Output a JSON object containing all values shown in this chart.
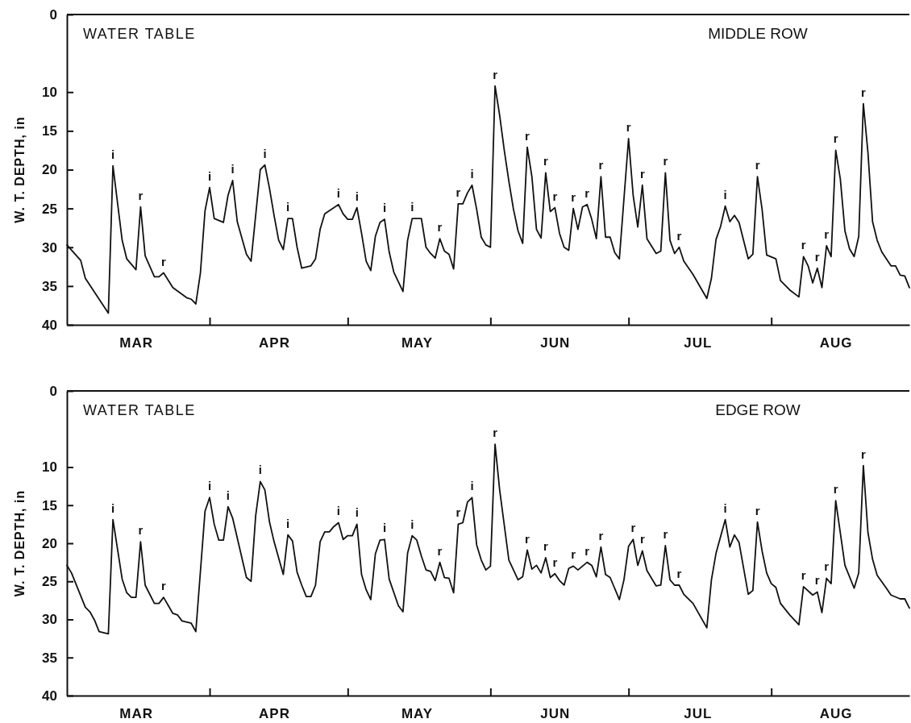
{
  "chart_data": [
    {
      "type": "line",
      "title": "MIDDLE ROW",
      "subtitle": "WATER TABLE",
      "ylabel": "W. T. DEPTH, in",
      "xlim": [
        "--03-01",
        "--08-31"
      ],
      "xticks": [
        {
          "value": "--03-16",
          "label": "MAR"
        },
        {
          "value": "--04-01",
          "label": null
        },
        {
          "value": "--04-15",
          "label": "APR"
        },
        {
          "value": "--05-01",
          "label": null
        },
        {
          "value": "--05-16",
          "label": "MAY"
        },
        {
          "value": "--06-01",
          "label": null
        },
        {
          "value": "--06-15",
          "label": "JUN"
        },
        {
          "value": "--07-01",
          "label": null
        },
        {
          "value": "--07-16",
          "label": "JUL"
        },
        {
          "value": "--08-01",
          "label": null
        },
        {
          "value": "--08-15",
          "label": "AUG"
        }
      ],
      "ylim": [
        40,
        0
      ],
      "yticks": [
        0,
        10,
        15,
        20,
        25,
        30,
        35,
        40
      ],
      "x": [
        "--03-01",
        "--03-04",
        "--03-05",
        "--03-10",
        "--03-11",
        "--03-13",
        "--03-14",
        "--03-16",
        "--03-17",
        "--03-18",
        "--03-20",
        "--03-21",
        "--03-22",
        "--03-24",
        "--03-27",
        "--03-28",
        "--03-29",
        "--03-30",
        "--03-31",
        "--04-01",
        "--04-02",
        "--04-04",
        "--04-05",
        "--04-06",
        "--04-07",
        "--04-09",
        "--04-10",
        "--04-12",
        "--04-13",
        "--04-14",
        "--04-15",
        "--04-16",
        "--04-17",
        "--04-18",
        "--04-19",
        "--04-20",
        "--04-21",
        "--04-23",
        "--04-24",
        "--04-25",
        "--04-26",
        "--04-29",
        "--04-30",
        "--05-01",
        "--05-02",
        "--05-03",
        "--05-04",
        "--05-05",
        "--05-06",
        "--05-07",
        "--05-08",
        "--05-09",
        "--05-10",
        "--05-11",
        "--05-13",
        "--05-14",
        "--05-15",
        "--05-17",
        "--05-18",
        "--05-19",
        "--05-20",
        "--05-21",
        "--05-22",
        "--05-23",
        "--05-24",
        "--05-25",
        "--05-26",
        "--05-27",
        "--05-28",
        "--05-29",
        "--05-30",
        "--05-31",
        "--06-01",
        "--06-02",
        "--06-03",
        "--06-04",
        "--06-05",
        "--06-06",
        "--06-07",
        "--06-08",
        "--06-09",
        "--06-10",
        "--06-11",
        "--06-12",
        "--06-13",
        "--06-14",
        "--06-15",
        "--06-16",
        "--06-17",
        "--06-18",
        "--06-19",
        "--06-20",
        "--06-21",
        "--06-22",
        "--06-23",
        "--06-24",
        "--06-25",
        "--06-26",
        "--06-27",
        "--06-28",
        "--06-29",
        "--07-01",
        "--07-02",
        "--07-03",
        "--07-04",
        "--07-05",
        "--07-07",
        "--07-08",
        "--07-09",
        "--07-10",
        "--07-11",
        "--07-12",
        "--07-13",
        "--07-15",
        "--07-18",
        "--07-19",
        "--07-20",
        "--07-21",
        "--07-22",
        "--07-23",
        "--07-24",
        "--07-25",
        "--07-27",
        "--07-28",
        "--07-29",
        "--07-30",
        "--07-31",
        "--08-02",
        "--08-03",
        "--08-05",
        "--08-07",
        "--08-08",
        "--08-09",
        "--08-10",
        "--08-11",
        "--08-12",
        "--08-13",
        "--08-14",
        "--08-15",
        "--08-16",
        "--08-17",
        "--08-18",
        "--08-19",
        "--08-20",
        "--08-21",
        "--08-22",
        "--08-23",
        "--08-24",
        "--08-25",
        "--08-27",
        "--08-28",
        "--08-29",
        "--08-30",
        "--08-31"
      ],
      "series": [
        {
          "color": "#111111",
          "values": [
            29.7,
            31.7,
            34.0,
            38.5,
            19.5,
            29.1,
            31.5,
            32.9,
            24.8,
            31.1,
            33.8,
            33.8,
            33.3,
            35.2,
            36.5,
            36.7,
            37.3,
            33.3,
            25.3,
            22.3,
            26.3,
            26.8,
            23.3,
            21.4,
            26.7,
            30.9,
            31.8,
            20.0,
            19.4,
            22.4,
            25.9,
            29.1,
            30.3,
            26.3,
            26.3,
            30.0,
            32.7,
            32.4,
            31.5,
            27.7,
            25.7,
            24.5,
            25.7,
            26.4,
            26.4,
            24.9,
            28.2,
            31.8,
            33.0,
            28.6,
            26.8,
            26.4,
            30.6,
            33.2,
            35.7,
            29.1,
            26.3,
            26.3,
            30.0,
            30.8,
            31.4,
            28.9,
            30.5,
            30.9,
            32.8,
            24.4,
            24.4,
            23.0,
            22.0,
            25.1,
            28.7,
            29.7,
            30.0,
            9.2,
            13.0,
            17.5,
            21.5,
            25.1,
            27.9,
            29.5,
            17.1,
            20.9,
            27.7,
            28.8,
            20.4,
            25.4,
            24.9,
            28.2,
            30.0,
            30.4,
            25.0,
            27.7,
            24.8,
            24.5,
            26.4,
            28.9,
            20.9,
            28.7,
            28.7,
            30.7,
            31.5,
            16.0,
            23.3,
            27.4,
            22.0,
            28.9,
            30.8,
            30.5,
            20.4,
            29.1,
            30.8,
            30.0,
            31.8,
            33.5,
            36.6,
            34.0,
            29.0,
            27.3,
            24.7,
            26.7,
            25.9,
            26.8,
            31.5,
            30.9,
            20.9,
            25.1,
            31.0,
            31.5,
            34.3,
            35.5,
            36.4,
            31.2,
            32.4,
            34.6,
            32.7,
            35.2,
            29.8,
            31.2,
            17.5,
            21.2,
            27.9,
            30.2,
            31.2,
            28.6,
            11.5,
            17.8,
            26.7,
            29.1,
            30.6,
            32.4,
            32.4,
            33.6,
            33.7,
            35.2
          ]
        }
      ],
      "annotations": [
        {
          "text": "i",
          "x": "--03-11",
          "y": 19.5
        },
        {
          "text": "r",
          "x": "--03-17",
          "y": 24.8
        },
        {
          "text": "r",
          "x": "--03-22",
          "y": 33.3
        },
        {
          "text": "i",
          "x": "--04-01",
          "y": 22.3
        },
        {
          "text": "i",
          "x": "--04-06",
          "y": 21.4
        },
        {
          "text": "i",
          "x": "--04-13",
          "y": 19.4
        },
        {
          "text": "i",
          "x": "--04-18",
          "y": 26.3
        },
        {
          "text": "i",
          "x": "--04-29",
          "y": 24.5
        },
        {
          "text": "i",
          "x": "--05-03",
          "y": 24.9
        },
        {
          "text": "i",
          "x": "--05-09",
          "y": 26.4
        },
        {
          "text": "i",
          "x": "--05-15",
          "y": 26.3
        },
        {
          "text": "r",
          "x": "--05-21",
          "y": 28.9
        },
        {
          "text": "r",
          "x": "--05-25",
          "y": 24.4
        },
        {
          "text": "i",
          "x": "--05-28",
          "y": 22.0
        },
        {
          "text": "r",
          "x": "--06-02",
          "y": 9.2
        },
        {
          "text": "r",
          "x": "--06-09",
          "y": 17.1
        },
        {
          "text": "r",
          "x": "--06-13",
          "y": 20.4
        },
        {
          "text": "r",
          "x": "--06-15",
          "y": 24.9
        },
        {
          "text": "r",
          "x": "--06-19",
          "y": 25.0
        },
        {
          "text": "r",
          "x": "--06-22",
          "y": 24.5
        },
        {
          "text": "r",
          "x": "--06-25",
          "y": 20.9
        },
        {
          "text": "r",
          "x": "--07-01",
          "y": 16.0
        },
        {
          "text": "r",
          "x": "--07-04",
          "y": 22.0
        },
        {
          "text": "r",
          "x": "--07-09",
          "y": 20.4
        },
        {
          "text": "r",
          "x": "--07-12",
          "y": 30.0
        },
        {
          "text": "i",
          "x": "--07-22",
          "y": 24.7
        },
        {
          "text": "r",
          "x": "--07-29",
          "y": 20.9
        },
        {
          "text": "r",
          "x": "--08-08",
          "y": 31.2
        },
        {
          "text": "r",
          "x": "--08-11",
          "y": 32.7
        },
        {
          "text": "r",
          "x": "--08-13",
          "y": 29.8
        },
        {
          "text": "r",
          "x": "--08-15",
          "y": 17.5
        },
        {
          "text": "r",
          "x": "--08-21",
          "y": 11.5
        }
      ]
    },
    {
      "type": "line",
      "title": "EDGE ROW",
      "subtitle": "WATER TABLE",
      "ylabel": "W. T. DEPTH, in",
      "xlim": [
        "--03-01",
        "--08-31"
      ],
      "xticks": [
        {
          "value": "--03-16",
          "label": "MAR"
        },
        {
          "value": "--04-01",
          "label": null
        },
        {
          "value": "--04-15",
          "label": "APR"
        },
        {
          "value": "--05-01",
          "label": null
        },
        {
          "value": "--05-16",
          "label": "MAY"
        },
        {
          "value": "--06-01",
          "label": null
        },
        {
          "value": "--06-15",
          "label": "JUN"
        },
        {
          "value": "--07-01",
          "label": null
        },
        {
          "value": "--07-16",
          "label": "JUL"
        },
        {
          "value": "--08-01",
          "label": null
        },
        {
          "value": "--08-15",
          "label": "AUG"
        }
      ],
      "ylim": [
        40,
        0
      ],
      "yticks": [
        0,
        10,
        15,
        20,
        25,
        30,
        35,
        40
      ],
      "x": [
        "--03-01",
        "--03-02",
        "--03-05",
        "--03-06",
        "--03-07",
        "--03-08",
        "--03-10",
        "--03-11",
        "--03-13",
        "--03-14",
        "--03-15",
        "--03-16",
        "--03-17",
        "--03-18",
        "--03-20",
        "--03-21",
        "--03-22",
        "--03-24",
        "--03-25",
        "--03-26",
        "--03-28",
        "--03-29",
        "--03-31",
        "--04-01",
        "--04-02",
        "--04-03",
        "--04-04",
        "--04-05",
        "--04-06",
        "--04-09",
        "--04-10",
        "--04-11",
        "--04-12",
        "--04-13",
        "--04-14",
        "--04-15",
        "--04-17",
        "--04-18",
        "--04-19",
        "--04-20",
        "--04-21",
        "--04-22",
        "--04-23",
        "--04-24",
        "--04-25",
        "--04-26",
        "--04-27",
        "--04-28",
        "--04-29",
        "--04-30",
        "--05-01",
        "--05-02",
        "--05-03",
        "--05-04",
        "--05-05",
        "--05-06",
        "--05-07",
        "--05-08",
        "--05-09",
        "--05-10",
        "--05-12",
        "--05-13",
        "--05-14",
        "--05-15",
        "--05-16",
        "--05-17",
        "--05-18",
        "--05-19",
        "--05-20",
        "--05-21",
        "--05-22",
        "--05-23",
        "--05-24",
        "--05-25",
        "--05-26",
        "--05-27",
        "--05-28",
        "--05-29",
        "--05-30",
        "--05-31",
        "--06-01",
        "--06-02",
        "--06-03",
        "--06-05",
        "--06-06",
        "--06-07",
        "--06-08",
        "--06-09",
        "--06-10",
        "--06-11",
        "--06-12",
        "--06-13",
        "--06-14",
        "--06-15",
        "--06-16",
        "--06-17",
        "--06-18",
        "--06-19",
        "--06-20",
        "--06-22",
        "--06-23",
        "--06-24",
        "--06-25",
        "--06-26",
        "--06-27",
        "--06-29",
        "--06-30",
        "--07-01",
        "--07-02",
        "--07-03",
        "--07-04",
        "--07-05",
        "--07-07",
        "--07-08",
        "--07-09",
        "--07-10",
        "--07-11",
        "--07-12",
        "--07-13",
        "--07-15",
        "--07-18",
        "--07-19",
        "--07-20",
        "--07-22",
        "--07-23",
        "--07-24",
        "--07-25",
        "--07-27",
        "--07-28",
        "--07-29",
        "--07-30",
        "--07-31",
        "--08-01",
        "--08-02",
        "--08-03",
        "--08-05",
        "--08-07",
        "--08-08",
        "--08-10",
        "--08-11",
        "--08-12",
        "--08-13",
        "--08-14",
        "--08-15",
        "--08-17",
        "--08-19",
        "--08-20",
        "--08-21",
        "--08-22",
        "--08-23",
        "--08-24",
        "--08-26",
        "--08-27",
        "--08-29",
        "--08-30",
        "--08-31"
      ],
      "series": [
        {
          "color": "#111111",
          "values": [
            22.9,
            23.9,
            28.4,
            29.0,
            30.1,
            31.6,
            31.9,
            16.9,
            24.7,
            26.5,
            27.1,
            27.1,
            19.8,
            25.5,
            27.9,
            27.9,
            27.1,
            29.2,
            29.4,
            30.2,
            30.5,
            31.6,
            15.8,
            14.0,
            17.5,
            19.6,
            19.6,
            15.2,
            16.7,
            24.5,
            25.0,
            16.4,
            11.9,
            13.0,
            17.2,
            19.8,
            24.1,
            18.9,
            19.7,
            23.8,
            25.5,
            27.0,
            27.0,
            25.5,
            19.8,
            18.5,
            18.5,
            17.8,
            17.3,
            19.5,
            19.0,
            19.0,
            17.5,
            24.1,
            26.1,
            27.4,
            21.4,
            19.6,
            19.5,
            24.7,
            28.2,
            29.0,
            21.3,
            19.0,
            19.6,
            21.7,
            23.5,
            23.7,
            24.9,
            22.5,
            24.5,
            24.6,
            26.5,
            17.5,
            17.3,
            14.6,
            14.0,
            20.2,
            22.2,
            23.5,
            23.0,
            7.0,
            13.0,
            22.2,
            23.5,
            24.8,
            24.4,
            20.9,
            23.4,
            22.9,
            23.9,
            21.9,
            24.5,
            24.0,
            24.9,
            25.5,
            23.3,
            23.0,
            23.5,
            22.5,
            22.9,
            24.4,
            20.5,
            24.1,
            24.5,
            27.4,
            24.8,
            20.4,
            19.5,
            22.9,
            21.0,
            23.6,
            25.6,
            25.5,
            20.3,
            24.8,
            25.5,
            25.5,
            26.7,
            27.9,
            31.1,
            24.8,
            21.3,
            16.9,
            20.5,
            18.9,
            19.9,
            26.7,
            26.2,
            17.2,
            21.0,
            23.9,
            25.3,
            25.8,
            27.9,
            29.4,
            30.7,
            25.7,
            26.8,
            26.4,
            29.1,
            24.6,
            25.3,
            14.4,
            22.9,
            25.9,
            23.9,
            9.8,
            18.6,
            22.1,
            24.2,
            25.9,
            26.8,
            27.3,
            27.3,
            28.5
          ]
        }
      ],
      "annotations": [
        {
          "text": "i",
          "x": "--03-11",
          "y": 16.9
        },
        {
          "text": "r",
          "x": "--03-17",
          "y": 19.8
        },
        {
          "text": "r",
          "x": "--03-22",
          "y": 27.1
        },
        {
          "text": "i",
          "x": "--04-01",
          "y": 14.0
        },
        {
          "text": "i",
          "x": "--04-05",
          "y": 15.2
        },
        {
          "text": "i",
          "x": "--04-12",
          "y": 11.9
        },
        {
          "text": "i",
          "x": "--04-18",
          "y": 18.9
        },
        {
          "text": "i",
          "x": "--04-29",
          "y": 17.3
        },
        {
          "text": "i",
          "x": "--05-03",
          "y": 17.5
        },
        {
          "text": "i",
          "x": "--05-09",
          "y": 19.5
        },
        {
          "text": "i",
          "x": "--05-15",
          "y": 19.0
        },
        {
          "text": "r",
          "x": "--05-21",
          "y": 22.5
        },
        {
          "text": "r",
          "x": "--05-25",
          "y": 17.5
        },
        {
          "text": "i",
          "x": "--05-28",
          "y": 14.0
        },
        {
          "text": "r",
          "x": "--06-02",
          "y": 7.0
        },
        {
          "text": "r",
          "x": "--06-09",
          "y": 20.9
        },
        {
          "text": "r",
          "x": "--06-13",
          "y": 21.9
        },
        {
          "text": "r",
          "x": "--06-15",
          "y": 24.0
        },
        {
          "text": "r",
          "x": "--06-19",
          "y": 23.0
        },
        {
          "text": "r",
          "x": "--06-22",
          "y": 22.5
        },
        {
          "text": "r",
          "x": "--06-25",
          "y": 20.5
        },
        {
          "text": "r",
          "x": "--07-02",
          "y": 19.5
        },
        {
          "text": "r",
          "x": "--07-04",
          "y": 21.0
        },
        {
          "text": "r",
          "x": "--07-09",
          "y": 20.3
        },
        {
          "text": "r",
          "x": "--07-12",
          "y": 25.5
        },
        {
          "text": "i",
          "x": "--07-22",
          "y": 16.9
        },
        {
          "text": "r",
          "x": "--07-29",
          "y": 17.2
        },
        {
          "text": "r",
          "x": "--08-08",
          "y": 25.7
        },
        {
          "text": "r",
          "x": "--08-11",
          "y": 26.4
        },
        {
          "text": "r",
          "x": "--08-13",
          "y": 24.6
        },
        {
          "text": "r",
          "x": "--08-15",
          "y": 14.4
        },
        {
          "text": "r",
          "x": "--08-21",
          "y": 9.8
        }
      ]
    }
  ]
}
